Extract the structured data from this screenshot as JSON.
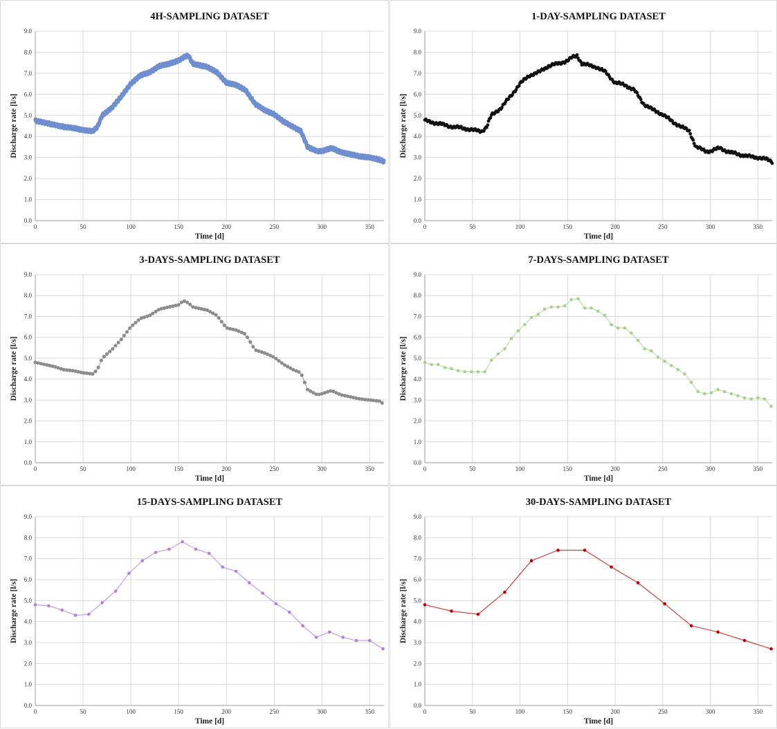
{
  "chart_data": [
    {
      "type": "line",
      "title": "4H-SAMPLING DATASET",
      "xlabel": "Time [d]",
      "ylabel": "Discharge rate [l/s]",
      "xlim": [
        0,
        365
      ],
      "ylim": [
        0,
        9
      ],
      "xticks": [
        "0",
        "50",
        "100",
        "150",
        "200",
        "250",
        "300",
        "350"
      ],
      "yticks": [
        "0.0",
        "1.0",
        "2.0",
        "3.0",
        "4.0",
        "5.0",
        "6.0",
        "7.0",
        "8.0",
        "9.0"
      ],
      "grid": true,
      "style": "dense-markers",
      "color": "#6f8fcf",
      "step": 0.1667,
      "series": [
        {
          "x": [
            0,
            10,
            20,
            30,
            40,
            50,
            60,
            65,
            70,
            80,
            90,
            100,
            110,
            120,
            130,
            140,
            150,
            155,
            160,
            165,
            170,
            180,
            190,
            200,
            210,
            220,
            230,
            240,
            250,
            260,
            270,
            278,
            285,
            295,
            300,
            310,
            320,
            330,
            340,
            350,
            360,
            365
          ],
          "values": [
            4.75,
            4.65,
            4.55,
            4.45,
            4.4,
            4.3,
            4.25,
            4.45,
            5.0,
            5.35,
            5.9,
            6.5,
            6.9,
            7.05,
            7.35,
            7.45,
            7.6,
            7.75,
            7.85,
            7.45,
            7.4,
            7.3,
            7.05,
            6.55,
            6.45,
            6.2,
            5.55,
            5.25,
            5.05,
            4.7,
            4.45,
            4.25,
            3.5,
            3.3,
            3.3,
            3.45,
            3.25,
            3.15,
            3.05,
            3.0,
            2.9,
            2.8
          ]
        }
      ]
    },
    {
      "type": "scatter",
      "title": "1-DAY-SAMPLING DATASET",
      "xlabel": "Time [d]",
      "ylabel": "Discharge rate [l/s]",
      "xlim": [
        0,
        365
      ],
      "ylim": [
        0,
        9
      ],
      "xticks": [
        "0",
        "50",
        "100",
        "150",
        "200",
        "250",
        "300",
        "350"
      ],
      "yticks": [
        "0.0",
        "1.0",
        "2.0",
        "3.0",
        "4.0",
        "5.0",
        "6.0",
        "7.0",
        "8.0",
        "9.0"
      ],
      "grid": true,
      "style": "dense-markers",
      "color": "#111111",
      "step": 1,
      "series": [
        {
          "x": [
            0,
            10,
            20,
            30,
            40,
            50,
            60,
            65,
            70,
            80,
            90,
            100,
            110,
            120,
            130,
            140,
            150,
            155,
            160,
            165,
            170,
            180,
            190,
            200,
            210,
            220,
            230,
            240,
            250,
            260,
            270,
            278,
            285,
            295,
            300,
            310,
            320,
            330,
            340,
            350,
            360,
            365
          ],
          "values": [
            4.75,
            4.65,
            4.55,
            4.45,
            4.4,
            4.3,
            4.25,
            4.45,
            5.0,
            5.35,
            5.9,
            6.5,
            6.9,
            7.05,
            7.35,
            7.45,
            7.6,
            7.75,
            7.85,
            7.45,
            7.4,
            7.3,
            7.05,
            6.55,
            6.45,
            6.2,
            5.55,
            5.25,
            5.05,
            4.7,
            4.45,
            4.25,
            3.5,
            3.3,
            3.3,
            3.45,
            3.25,
            3.15,
            3.05,
            3.0,
            2.9,
            2.8
          ]
        }
      ]
    },
    {
      "type": "line",
      "title": "3-DAYS-SAMPLING DATASET",
      "xlabel": "Time [d]",
      "ylabel": "Discharge rate [l/s]",
      "xlim": [
        0,
        365
      ],
      "ylim": [
        0,
        9
      ],
      "xticks": [
        "0",
        "50",
        "100",
        "150",
        "200",
        "250",
        "300",
        "350"
      ],
      "yticks": [
        "0.0",
        "1.0",
        "2.0",
        "3.0",
        "4.0",
        "5.0",
        "6.0",
        "7.0",
        "8.0",
        "9.0"
      ],
      "grid": true,
      "style": "markers-line",
      "color": "#8c8c8c",
      "step": 3,
      "series": [
        {
          "x": [
            0,
            10,
            20,
            30,
            40,
            50,
            60,
            65,
            70,
            80,
            90,
            100,
            110,
            120,
            130,
            140,
            150,
            155,
            160,
            165,
            170,
            180,
            190,
            200,
            210,
            220,
            230,
            240,
            250,
            260,
            270,
            278,
            285,
            295,
            300,
            310,
            320,
            330,
            340,
            350,
            360,
            365
          ],
          "values": [
            4.8,
            4.7,
            4.6,
            4.45,
            4.4,
            4.3,
            4.25,
            4.45,
            5.0,
            5.4,
            5.9,
            6.5,
            6.9,
            7.05,
            7.35,
            7.45,
            7.55,
            7.75,
            7.65,
            7.45,
            7.4,
            7.3,
            7.05,
            6.45,
            6.35,
            6.15,
            5.4,
            5.25,
            5.05,
            4.7,
            4.45,
            4.3,
            3.5,
            3.25,
            3.3,
            3.45,
            3.25,
            3.15,
            3.05,
            3.0,
            2.95,
            2.8
          ]
        }
      ]
    },
    {
      "type": "line",
      "title": "7-DAYS-SAMPLING DATASET",
      "xlabel": "Time [d]",
      "ylabel": "Discharge rate [l/s]",
      "xlim": [
        0,
        365
      ],
      "ylim": [
        0,
        9
      ],
      "xticks": [
        "0",
        "50",
        "100",
        "150",
        "200",
        "250",
        "300",
        "350"
      ],
      "yticks": [
        "0.0",
        "1.0",
        "2.0",
        "3.0",
        "4.0",
        "5.0",
        "6.0",
        "7.0",
        "8.0",
        "9.0"
      ],
      "grid": true,
      "style": "markers-line",
      "color": "#a8d08d",
      "series": [
        {
          "x": [
            0,
            7,
            14,
            21,
            28,
            35,
            42,
            49,
            56,
            63,
            70,
            77,
            84,
            91,
            98,
            105,
            112,
            119,
            126,
            133,
            140,
            147,
            154,
            161,
            168,
            175,
            182,
            189,
            196,
            203,
            210,
            217,
            224,
            231,
            238,
            245,
            252,
            259,
            266,
            273,
            280,
            287,
            294,
            301,
            308,
            315,
            322,
            329,
            336,
            343,
            350,
            357,
            364
          ],
          "values": [
            4.8,
            4.7,
            4.7,
            4.55,
            4.5,
            4.4,
            4.35,
            4.35,
            4.35,
            4.35,
            4.9,
            5.2,
            5.45,
            5.95,
            6.3,
            6.6,
            6.95,
            7.1,
            7.35,
            7.45,
            7.45,
            7.5,
            7.8,
            7.85,
            7.4,
            7.4,
            7.25,
            7.05,
            6.6,
            6.45,
            6.45,
            6.2,
            5.85,
            5.45,
            5.35,
            5.05,
            4.85,
            4.65,
            4.45,
            4.25,
            3.85,
            3.4,
            3.3,
            3.35,
            3.5,
            3.4,
            3.3,
            3.2,
            3.1,
            3.05,
            3.1,
            3.05,
            2.7
          ]
        }
      ]
    },
    {
      "type": "line",
      "title": "15-DAYS-SAMPLING DATASET",
      "xlabel": "Time [d]",
      "ylabel": "Discharge rate [l/s]",
      "xlim": [
        0,
        365
      ],
      "ylim": [
        0,
        9
      ],
      "xticks": [
        "0",
        "50",
        "100",
        "150",
        "200",
        "250",
        "300",
        "350"
      ],
      "yticks": [
        "0.0",
        "1.0",
        "2.0",
        "3.0",
        "4.0",
        "5.0",
        "6.0",
        "7.0",
        "8.0",
        "9.0"
      ],
      "grid": true,
      "style": "markers-line",
      "color": "#b07fd6",
      "series": [
        {
          "x": [
            0,
            14,
            28,
            42,
            56,
            70,
            84,
            98,
            112,
            126,
            140,
            154,
            168,
            182,
            196,
            210,
            224,
            238,
            252,
            266,
            280,
            294,
            308,
            322,
            336,
            350,
            364
          ],
          "values": [
            4.8,
            4.75,
            4.55,
            4.3,
            4.35,
            4.9,
            5.45,
            6.3,
            6.9,
            7.3,
            7.45,
            7.8,
            7.45,
            7.25,
            6.6,
            6.4,
            5.85,
            5.35,
            4.85,
            4.45,
            3.8,
            3.25,
            3.5,
            3.25,
            3.1,
            3.1,
            2.7
          ]
        }
      ]
    },
    {
      "type": "line",
      "title": "30-DAYS-SAMPLING DATASET",
      "xlabel": "Time [d]",
      "ylabel": "Discharge rate [l/s]",
      "xlim": [
        0,
        365
      ],
      "ylim": [
        0,
        9
      ],
      "xticks": [
        "0",
        "50",
        "100",
        "150",
        "200",
        "250",
        "300",
        "350"
      ],
      "yticks": [
        "0.0",
        "1.0",
        "2.0",
        "3.0",
        "4.0",
        "5.0",
        "6.0",
        "7.0",
        "8.0",
        "9.0"
      ],
      "grid": true,
      "style": "markers-line",
      "color": "#c00000",
      "series": [
        {
          "x": [
            0,
            28,
            56,
            84,
            112,
            140,
            168,
            196,
            224,
            252,
            280,
            308,
            336,
            364
          ],
          "values": [
            4.8,
            4.5,
            4.35,
            5.4,
            6.9,
            7.4,
            7.4,
            6.6,
            5.85,
            4.85,
            3.8,
            3.5,
            3.1,
            2.7
          ]
        }
      ]
    }
  ]
}
